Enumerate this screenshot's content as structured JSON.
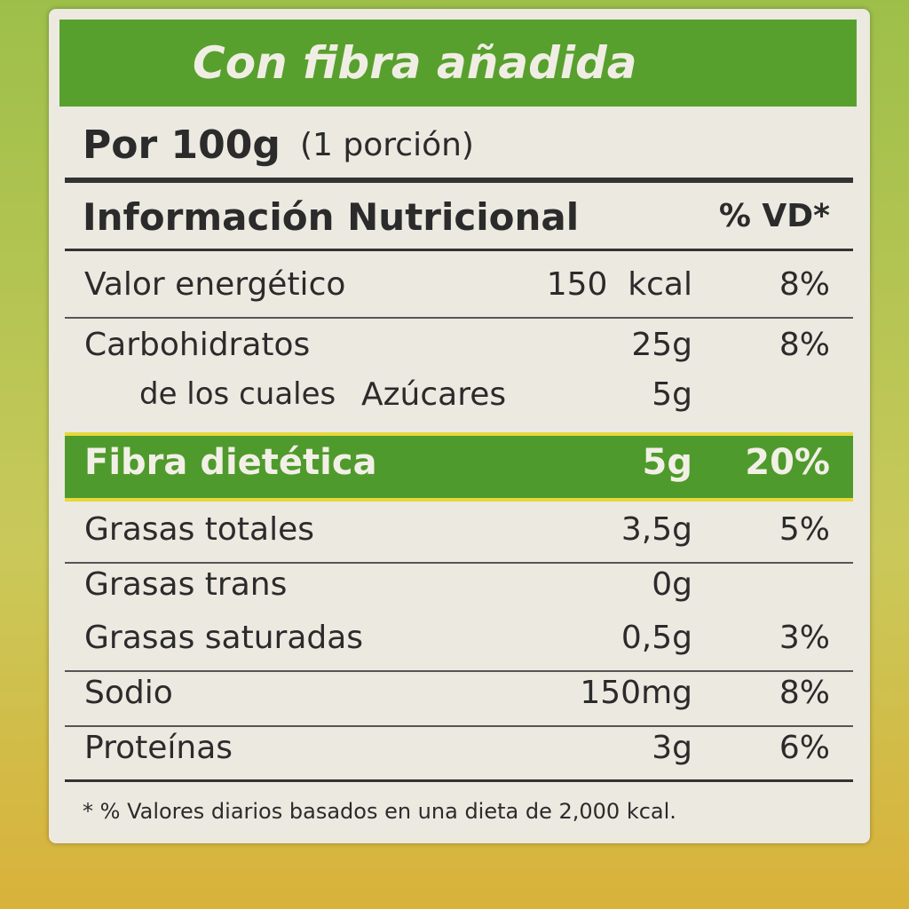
{
  "banner": "Con fibra añadida",
  "serving": {
    "amount": "Por 100g",
    "portion": "(1 porción)"
  },
  "header": {
    "title": "Información Nutricional",
    "vd": "% VD*"
  },
  "rows": [
    {
      "name": "Valor energético",
      "amount": "150  kcal",
      "vd": "8%"
    },
    {
      "name": "Carbohidratos",
      "amount": "25g",
      "vd": "8%"
    },
    {
      "prefix": "de los cuales",
      "name": "Azúcares",
      "amount": "5g"
    },
    {
      "name": "Fibra dietética",
      "amount": "5g",
      "vd": "20%",
      "highlight": true
    },
    {
      "name": "Grasas totales",
      "amount": "3,5g",
      "vd": "5%"
    },
    {
      "name": "Grasas trans",
      "amount": "0g"
    },
    {
      "name": "Grasas saturadas",
      "amount": "0,5g",
      "vd": "3%"
    },
    {
      "name": "Sodio",
      "amount": "150mg",
      "vd": "8%"
    },
    {
      "name": "Proteínas",
      "amount": "3g",
      "vd": "6%"
    }
  ],
  "footnote": "* % Valores diarios basados en una dieta de 2,000 kcal."
}
